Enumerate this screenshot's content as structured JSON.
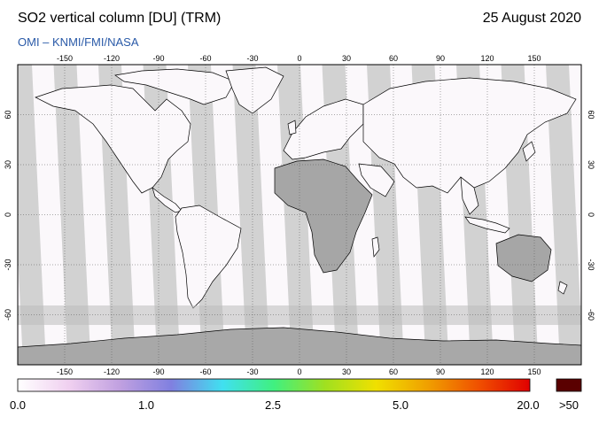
{
  "header": {
    "title": "SO2 vertical column [DU] (TRM)",
    "date": "25 August 2020",
    "credit": "OMI  –  KNMI/FMI/NASA"
  },
  "map": {
    "projection": "equirectangular",
    "top_lon_ticks": [
      "-150",
      "-120",
      "-90",
      "-60",
      "-30",
      "0",
      "30",
      "60",
      "90",
      "120",
      "150"
    ],
    "bottom_lon_ticks": [
      "-150",
      "-120",
      "-90",
      "-60",
      "-30",
      "0",
      "30",
      "60",
      "90",
      "120",
      "150"
    ],
    "lat_ticks": [
      "60",
      "30",
      "0",
      "-30",
      "-60"
    ],
    "colors": {
      "no_data_swath": "#d2d2d2",
      "land_shading": "#a6a6a6",
      "coastline": "#000000",
      "background": "#fbf8fb",
      "polar": "#a8a8a8"
    }
  },
  "colorbar": {
    "labels": [
      "0.0",
      "1.0",
      "2.5",
      "5.0",
      "20.0"
    ],
    "overflow_label": ">50",
    "overflow_color": "#5a0000",
    "gradient": [
      "#ffffff",
      "#f0d0f0",
      "#c0a0e0",
      "#8080e0",
      "#40e0f0",
      "#40f080",
      "#a0e020",
      "#f0e000",
      "#f0a000",
      "#f05000",
      "#e00000"
    ]
  }
}
